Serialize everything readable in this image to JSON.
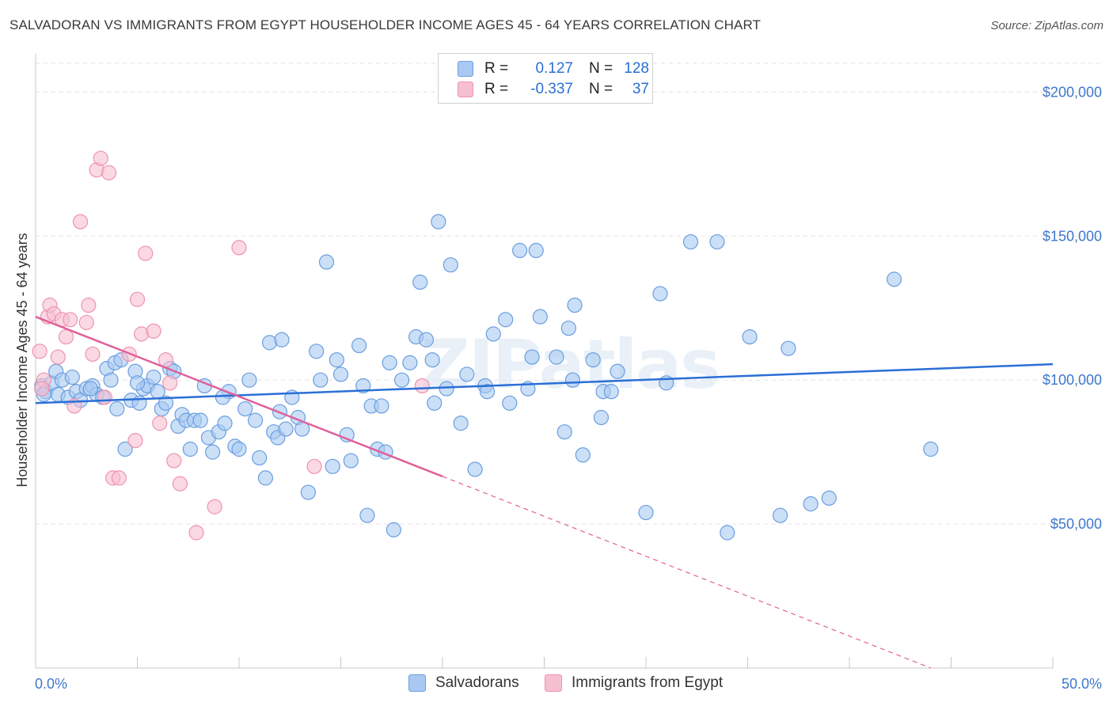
{
  "title": "SALVADORAN VS IMMIGRANTS FROM EGYPT HOUSEHOLDER INCOME AGES 45 - 64 YEARS CORRELATION CHART",
  "source": "Source: ZipAtlas.com",
  "watermark": "ZIPatlas",
  "legend": {
    "rows": [
      {
        "r_label": "R =",
        "r_value": "0.127",
        "n_label": "N =",
        "n_value": "128"
      },
      {
        "r_label": "R =",
        "r_value": "-0.337",
        "n_label": "N =",
        "n_value": "37"
      }
    ]
  },
  "colors": {
    "salvadorans_fill": "#a9c9f2",
    "salvadorans_stroke": "#6a9ee0",
    "salvadorans_line": "#2a6fd6",
    "egypt_fill": "#f6bfd0",
    "egypt_stroke": "#ee93b1",
    "egypt_line": "#e0609a",
    "axis_text": "#3f78cc",
    "grid": "#e3e3e3"
  },
  "chart_data": {
    "type": "scatter",
    "title": "SALVADORAN VS IMMIGRANTS FROM EGYPT HOUSEHOLDER INCOME AGES 45 - 64 YEARS CORRELATION CHART",
    "xlabel": "",
    "ylabel": "Householder Income Ages 45 - 64 years",
    "xlim": [
      0,
      50
    ],
    "ylim": [
      0,
      210000
    ],
    "x_tick_labels": [
      "0.0%",
      "50.0%"
    ],
    "y_ticks": [
      50000,
      100000,
      150000,
      200000
    ],
    "y_tick_labels": [
      "$50,000",
      "$100,000",
      "$150,000",
      "$200,000"
    ],
    "grid": true,
    "legend_position": "bottom-center",
    "series": [
      {
        "name": "Salvadorans",
        "r": 0.127,
        "n": 128,
        "trend": {
          "x0": 0,
          "y0": 92000,
          "x1": 50,
          "y1": 105500
        },
        "points": [
          [
            0.3,
            98000
          ],
          [
            0.5,
            96000
          ],
          [
            0.8,
            99000
          ],
          [
            1.0,
            103000
          ],
          [
            1.1,
            95000
          ],
          [
            1.3,
            100000
          ],
          [
            1.6,
            94000
          ],
          [
            1.8,
            101000
          ],
          [
            2.0,
            96000
          ],
          [
            2.2,
            93000
          ],
          [
            2.5,
            97000
          ],
          [
            2.8,
            98000
          ],
          [
            3.0,
            95000
          ],
          [
            3.3,
            94000
          ],
          [
            3.5,
            104000
          ],
          [
            3.7,
            100000
          ],
          [
            3.9,
            106000
          ],
          [
            4.0,
            90000
          ],
          [
            4.2,
            107000
          ],
          [
            4.4,
            76000
          ],
          [
            4.7,
            93000
          ],
          [
            4.9,
            103000
          ],
          [
            5.1,
            92000
          ],
          [
            5.3,
            97000
          ],
          [
            5.5,
            98000
          ],
          [
            5.8,
            101000
          ],
          [
            6.0,
            96000
          ],
          [
            6.2,
            90000
          ],
          [
            6.4,
            92000
          ],
          [
            6.6,
            104000
          ],
          [
            6.8,
            103000
          ],
          [
            7.0,
            84000
          ],
          [
            7.2,
            88000
          ],
          [
            7.4,
            86000
          ],
          [
            7.6,
            76000
          ],
          [
            7.8,
            86000
          ],
          [
            8.1,
            86000
          ],
          [
            8.3,
            98000
          ],
          [
            8.5,
            80000
          ],
          [
            8.7,
            75000
          ],
          [
            9.0,
            82000
          ],
          [
            9.3,
            85000
          ],
          [
            9.5,
            96000
          ],
          [
            9.8,
            77000
          ],
          [
            10.0,
            76000
          ],
          [
            10.3,
            90000
          ],
          [
            10.5,
            100000
          ],
          [
            10.8,
            86000
          ],
          [
            11.0,
            73000
          ],
          [
            11.3,
            66000
          ],
          [
            11.5,
            113000
          ],
          [
            11.7,
            82000
          ],
          [
            11.9,
            80000
          ],
          [
            12.1,
            114000
          ],
          [
            12.3,
            83000
          ],
          [
            12.6,
            94000
          ],
          [
            12.9,
            87000
          ],
          [
            13.1,
            83000
          ],
          [
            13.4,
            61000
          ],
          [
            13.8,
            110000
          ],
          [
            14.0,
            100000
          ],
          [
            14.3,
            141000
          ],
          [
            14.6,
            70000
          ],
          [
            14.8,
            107000
          ],
          [
            15.0,
            102000
          ],
          [
            15.3,
            81000
          ],
          [
            15.5,
            72000
          ],
          [
            15.9,
            112000
          ],
          [
            16.1,
            98000
          ],
          [
            16.3,
            53000
          ],
          [
            16.5,
            91000
          ],
          [
            16.8,
            76000
          ],
          [
            17.0,
            91000
          ],
          [
            17.2,
            75000
          ],
          [
            17.4,
            106000
          ],
          [
            17.6,
            48000
          ],
          [
            18.0,
            100000
          ],
          [
            18.4,
            106000
          ],
          [
            18.7,
            115000
          ],
          [
            18.9,
            134000
          ],
          [
            19.2,
            114000
          ],
          [
            19.5,
            107000
          ],
          [
            19.6,
            92000
          ],
          [
            19.8,
            155000
          ],
          [
            20.2,
            97000
          ],
          [
            20.4,
            140000
          ],
          [
            20.9,
            85000
          ],
          [
            21.2,
            102000
          ],
          [
            21.6,
            69000
          ],
          [
            22.1,
            98000
          ],
          [
            22.2,
            96000
          ],
          [
            22.5,
            116000
          ],
          [
            23.1,
            121000
          ],
          [
            23.3,
            92000
          ],
          [
            23.8,
            145000
          ],
          [
            24.2,
            97000
          ],
          [
            24.4,
            108000
          ],
          [
            24.6,
            145000
          ],
          [
            24.8,
            122000
          ],
          [
            25.6,
            108000
          ],
          [
            26.0,
            82000
          ],
          [
            26.2,
            118000
          ],
          [
            26.4,
            100000
          ],
          [
            26.5,
            126000
          ],
          [
            26.9,
            74000
          ],
          [
            27.4,
            107000
          ],
          [
            27.8,
            87000
          ],
          [
            27.9,
            96000
          ],
          [
            28.3,
            96000
          ],
          [
            28.6,
            103000
          ],
          [
            30.0,
            54000
          ],
          [
            30.7,
            130000
          ],
          [
            31.0,
            99000
          ],
          [
            32.2,
            148000
          ],
          [
            33.5,
            148000
          ],
          [
            34.0,
            47000
          ],
          [
            35.1,
            115000
          ],
          [
            36.6,
            53000
          ],
          [
            37.0,
            111000
          ],
          [
            38.1,
            57000
          ],
          [
            39.0,
            59000
          ],
          [
            42.2,
            135000
          ],
          [
            44.0,
            76000
          ],
          [
            0.4,
            95000
          ],
          [
            2.7,
            97000
          ],
          [
            5.0,
            99000
          ],
          [
            9.2,
            94000
          ],
          [
            12.0,
            89000
          ]
        ]
      },
      {
        "name": "Immigrants from Egypt",
        "r": -0.337,
        "n": 37,
        "trend": {
          "x0": 0,
          "y0": 122000,
          "x1": 44,
          "y1": 0,
          "solid_until_x": 20.0
        },
        "points": [
          [
            0.2,
            110000
          ],
          [
            0.4,
            100000
          ],
          [
            0.6,
            122000
          ],
          [
            0.7,
            126000
          ],
          [
            0.9,
            123000
          ],
          [
            1.1,
            108000
          ],
          [
            1.3,
            121000
          ],
          [
            1.5,
            115000
          ],
          [
            1.7,
            121000
          ],
          [
            1.9,
            91000
          ],
          [
            2.2,
            155000
          ],
          [
            2.5,
            120000
          ],
          [
            2.6,
            126000
          ],
          [
            2.8,
            109000
          ],
          [
            3.0,
            173000
          ],
          [
            3.2,
            177000
          ],
          [
            3.4,
            94000
          ],
          [
            3.6,
            172000
          ],
          [
            3.8,
            66000
          ],
          [
            4.1,
            66000
          ],
          [
            4.6,
            109000
          ],
          [
            4.9,
            79000
          ],
          [
            5.0,
            128000
          ],
          [
            5.2,
            116000
          ],
          [
            5.4,
            144000
          ],
          [
            5.8,
            117000
          ],
          [
            6.1,
            85000
          ],
          [
            6.4,
            107000
          ],
          [
            6.6,
            99000
          ],
          [
            6.8,
            72000
          ],
          [
            7.1,
            64000
          ],
          [
            7.9,
            47000
          ],
          [
            8.8,
            56000
          ],
          [
            10.0,
            146000
          ],
          [
            13.7,
            70000
          ],
          [
            19.0,
            98000
          ],
          [
            0.3,
            97000
          ]
        ]
      }
    ]
  },
  "bottom_legend": [
    "Salvadorans",
    "Immigrants from Egypt"
  ]
}
